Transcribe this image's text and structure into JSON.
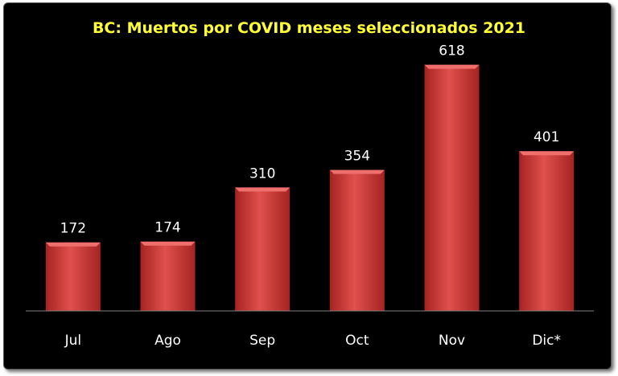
{
  "chart_data": {
    "type": "bar",
    "title": "BC: Muertos por COVID meses seleccionados 2021",
    "categories": [
      "Jul",
      "Ago",
      "Sep",
      "Oct",
      "Nov",
      "Dic*"
    ],
    "values": [
      172,
      174,
      310,
      354,
      618,
      401
    ],
    "ylim": [
      0,
      700
    ],
    "grid": false,
    "legend": "none",
    "colors": {
      "background": "#000000",
      "title": "#ffff33",
      "bar_light": "#e0504c",
      "bar_dark": "#a62322",
      "text": "#ffffff",
      "axis": "#7f7f7f"
    }
  }
}
